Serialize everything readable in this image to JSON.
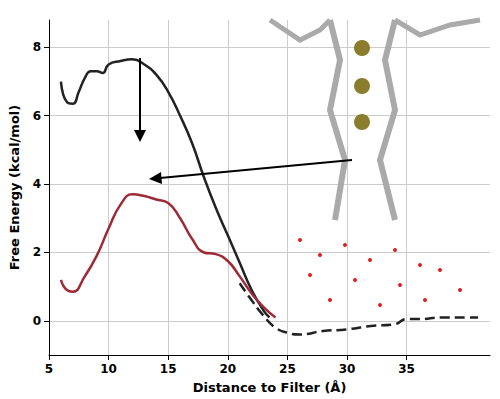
{
  "chart_data": {
    "type": "line",
    "x_label": "Distance to Filter (Å)",
    "y_label": "Free Energy (kcal/mol)",
    "xlim": [
      5,
      42
    ],
    "xticks": [
      5,
      10,
      15,
      20,
      25,
      30,
      35
    ],
    "ylim": [
      -1,
      8.8
    ],
    "yticks": [
      0,
      2,
      4,
      6,
      8
    ],
    "grid": true,
    "series": [
      {
        "color": "#222222",
        "line_style": "solid",
        "x": [
          6,
          6.5,
          7,
          7.5,
          8,
          8.5,
          9,
          9.5,
          10,
          11,
          12,
          13,
          14,
          15,
          16,
          17,
          18,
          19,
          20,
          21,
          22,
          23,
          23.5
        ],
        "values": [
          7.0,
          6.4,
          6.35,
          6.7,
          7.1,
          7.3,
          7.3,
          7.25,
          7.5,
          7.6,
          7.65,
          7.5,
          7.2,
          6.7,
          6.0,
          5.2,
          4.2,
          3.3,
          2.5,
          1.7,
          0.9,
          0.3,
          0.1
        ]
      },
      {
        "color": "#222222",
        "line_style": "dashed",
        "x": [
          21,
          22,
          23,
          24,
          25,
          26,
          28,
          30,
          32,
          34,
          35,
          36,
          38,
          40,
          41
        ],
        "values": [
          1.1,
          0.6,
          0.15,
          -0.2,
          -0.35,
          -0.4,
          -0.3,
          -0.25,
          -0.15,
          -0.1,
          0.05,
          0.05,
          0.1,
          0.1,
          0.1
        ]
      },
      {
        "color": "#9e2a36",
        "line_style": "solid",
        "x": [
          6,
          6.5,
          7,
          8,
          9,
          10,
          11,
          12,
          13,
          14,
          15,
          16,
          17,
          18,
          19,
          20,
          21,
          22,
          23,
          24
        ],
        "values": [
          1.2,
          0.9,
          0.85,
          1.3,
          1.9,
          2.7,
          3.4,
          3.7,
          3.65,
          3.55,
          3.45,
          3.0,
          2.4,
          2.0,
          1.95,
          1.75,
          1.3,
          0.8,
          0.4,
          0.1
        ]
      }
    ]
  }
}
